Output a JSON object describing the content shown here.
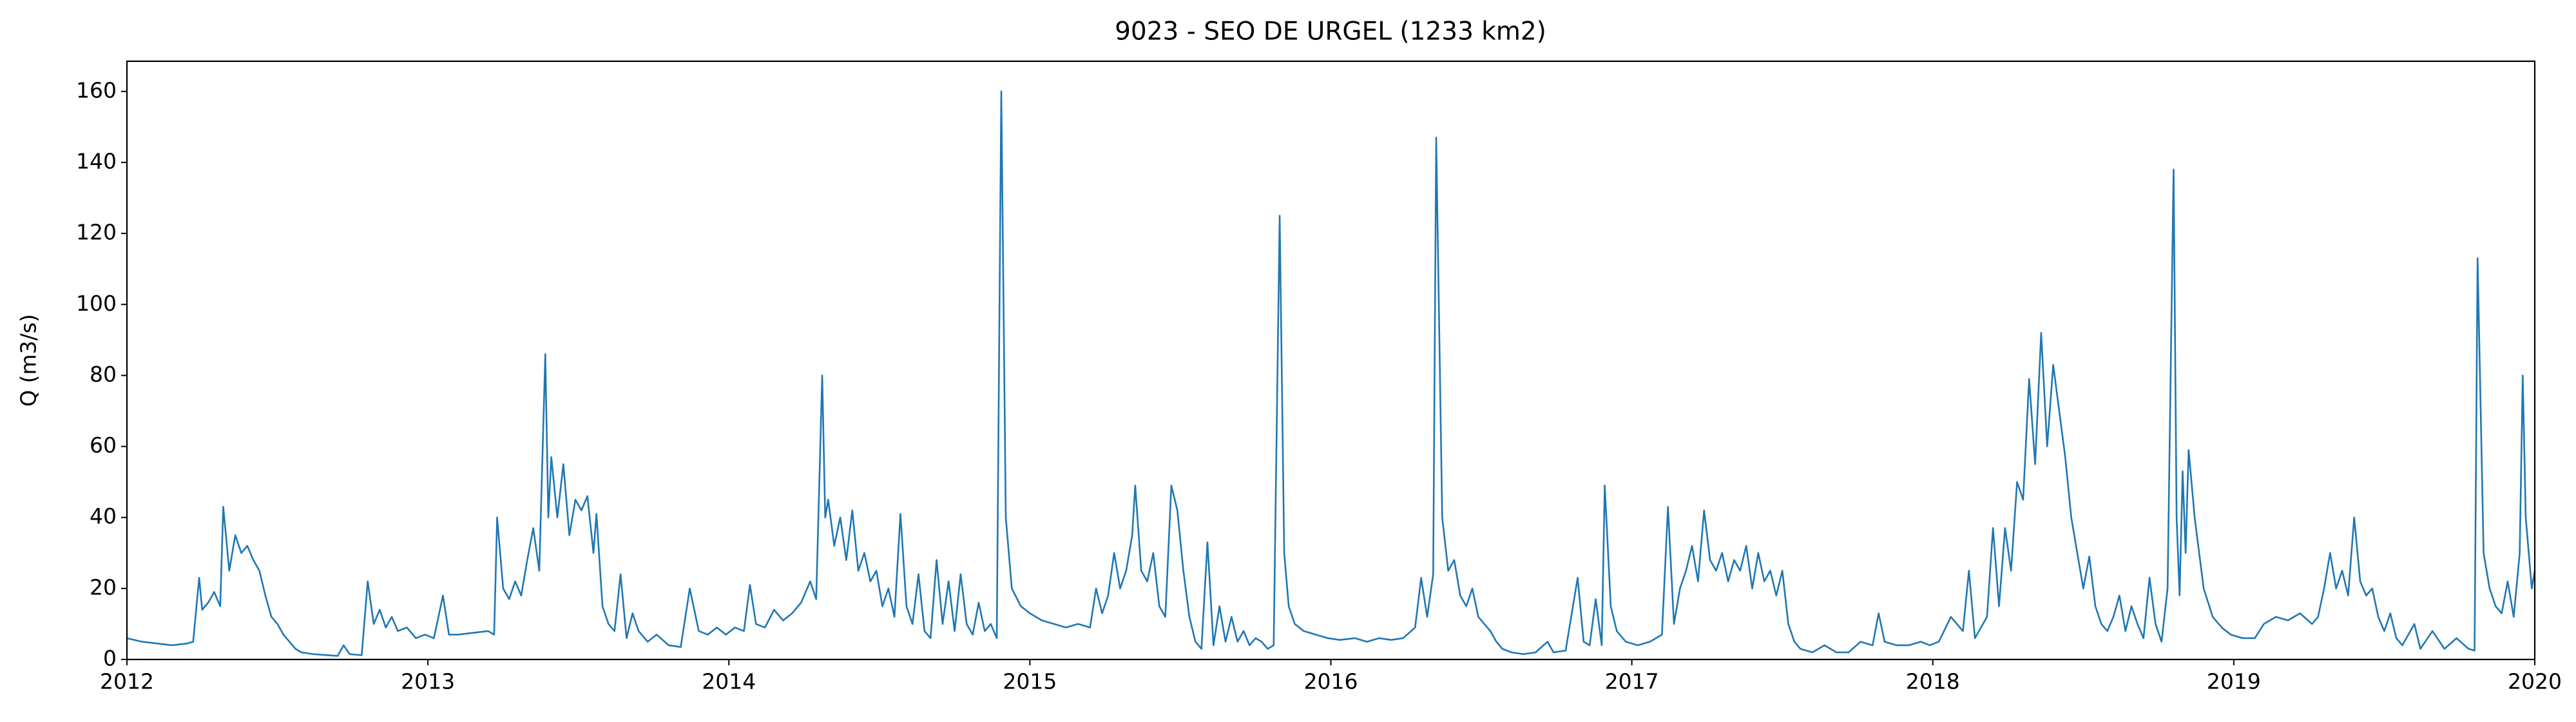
{
  "chart_data": {
    "type": "line",
    "title": "9023 - SEO DE URGEL (1233 km2)",
    "y_label": "Q (m3/s)",
    "color": "#1f77b4",
    "grid": false,
    "xlim": [
      2012,
      2020
    ],
    "xticks": [
      2012,
      2013,
      2014,
      2015,
      2016,
      2017,
      2018,
      2019,
      2020
    ],
    "ylim": [
      0,
      168.5
    ],
    "yticks": [
      0,
      20,
      40,
      60,
      80,
      100,
      120,
      140,
      160
    ],
    "x": [
      2012.0,
      2012.05,
      2012.1,
      2012.15,
      2012.2,
      2012.22,
      2012.24,
      2012.25,
      2012.27,
      2012.29,
      2012.31,
      2012.32,
      2012.34,
      2012.36,
      2012.38,
      2012.4,
      2012.42,
      2012.44,
      2012.46,
      2012.48,
      2012.5,
      2012.52,
      2012.54,
      2012.56,
      2012.58,
      2012.62,
      2012.7,
      2012.72,
      2012.74,
      2012.78,
      2012.8,
      2012.82,
      2012.84,
      2012.86,
      2012.88,
      2012.9,
      2012.93,
      2012.96,
      2012.99,
      2013.02,
      2013.05,
      2013.07,
      2013.1,
      2013.15,
      2013.2,
      2013.22,
      2013.23,
      2013.25,
      2013.27,
      2013.29,
      2013.31,
      2013.33,
      2013.35,
      2013.37,
      2013.39,
      2013.4,
      2013.41,
      2013.43,
      2013.45,
      2013.47,
      2013.49,
      2013.51,
      2013.53,
      2013.55,
      2013.56,
      2013.58,
      2013.6,
      2013.62,
      2013.64,
      2013.66,
      2013.68,
      2013.7,
      2013.73,
      2013.76,
      2013.8,
      2013.84,
      2013.87,
      2013.9,
      2013.93,
      2013.96,
      2013.99,
      2014.02,
      2014.05,
      2014.07,
      2014.09,
      2014.12,
      2014.15,
      2014.18,
      2014.21,
      2014.24,
      2014.27,
      2014.29,
      2014.31,
      2014.32,
      2014.33,
      2014.35,
      2014.37,
      2014.39,
      2014.41,
      2014.43,
      2014.45,
      2014.47,
      2014.49,
      2014.51,
      2014.53,
      2014.55,
      2014.57,
      2014.59,
      2014.61,
      2014.63,
      2014.65,
      2014.67,
      2014.69,
      2014.71,
      2014.73,
      2014.75,
      2014.77,
      2014.79,
      2014.81,
      2014.83,
      2014.85,
      2014.87,
      2014.89,
      2014.905,
      2014.92,
      2014.94,
      2014.97,
      2015.0,
      2015.04,
      2015.08,
      2015.12,
      2015.16,
      2015.2,
      2015.22,
      2015.24,
      2015.26,
      2015.28,
      2015.3,
      2015.32,
      2015.34,
      2015.35,
      2015.37,
      2015.39,
      2015.41,
      2015.43,
      2015.45,
      2015.47,
      2015.49,
      2015.51,
      2015.53,
      2015.55,
      2015.57,
      2015.59,
      2015.61,
      2015.63,
      2015.65,
      2015.67,
      2015.69,
      2015.71,
      2015.73,
      2015.75,
      2015.77,
      2015.79,
      2015.81,
      2015.83,
      2015.845,
      2015.86,
      2015.88,
      2015.91,
      2015.95,
      2015.99,
      2016.03,
      2016.08,
      2016.12,
      2016.16,
      2016.2,
      2016.24,
      2016.28,
      2016.3,
      2016.32,
      2016.34,
      2016.35,
      2016.37,
      2016.39,
      2016.41,
      2016.43,
      2016.45,
      2016.47,
      2016.49,
      2016.51,
      2016.53,
      2016.55,
      2016.57,
      2016.6,
      2016.64,
      2016.68,
      2016.72,
      2016.74,
      2016.78,
      2016.82,
      2016.84,
      2016.86,
      2016.88,
      2016.9,
      2016.91,
      2016.93,
      2016.95,
      2016.98,
      2017.02,
      2017.06,
      2017.1,
      2017.12,
      2017.14,
      2017.16,
      2017.18,
      2017.2,
      2017.22,
      2017.24,
      2017.26,
      2017.28,
      2017.3,
      2017.32,
      2017.34,
      2017.36,
      2017.38,
      2017.4,
      2017.42,
      2017.44,
      2017.46,
      2017.48,
      2017.5,
      2017.52,
      2017.54,
      2017.56,
      2017.6,
      2017.64,
      2017.68,
      2017.72,
      2017.76,
      2017.8,
      2017.82,
      2017.84,
      2017.88,
      2017.92,
      2017.96,
      2017.99,
      2018.02,
      2018.06,
      2018.1,
      2018.12,
      2018.14,
      2018.18,
      2018.2,
      2018.22,
      2018.24,
      2018.26,
      2018.28,
      2018.3,
      2018.32,
      2018.34,
      2018.36,
      2018.38,
      2018.4,
      2018.42,
      2018.44,
      2018.46,
      2018.48,
      2018.5,
      2018.52,
      2018.54,
      2018.56,
      2018.58,
      2018.6,
      2018.62,
      2018.64,
      2018.66,
      2018.68,
      2018.7,
      2018.72,
      2018.74,
      2018.76,
      2018.78,
      2018.8,
      2018.81,
      2018.82,
      2018.83,
      2018.84,
      2018.85,
      2018.87,
      2018.9,
      2018.93,
      2018.96,
      2018.99,
      2019.03,
      2019.07,
      2019.1,
      2019.14,
      2019.18,
      2019.22,
      2019.26,
      2019.28,
      2019.3,
      2019.32,
      2019.34,
      2019.36,
      2019.38,
      2019.4,
      2019.42,
      2019.44,
      2019.46,
      2019.48,
      2019.5,
      2019.52,
      2019.54,
      2019.56,
      2019.6,
      2019.62,
      2019.66,
      2019.7,
      2019.74,
      2019.78,
      2019.8,
      2019.81,
      2019.83,
      2019.85,
      2019.87,
      2019.89,
      2019.91,
      2019.93,
      2019.95,
      2019.96,
      2019.97,
      2019.99,
      2020.0
    ],
    "values": [
      6,
      5,
      4.5,
      4,
      4.5,
      5,
      23,
      14,
      16,
      19,
      15,
      43,
      25,
      35,
      30,
      32,
      28,
      25,
      18,
      12,
      10,
      7,
      5,
      3,
      2,
      1.5,
      1,
      4,
      1.5,
      1.2,
      22,
      10,
      14,
      9,
      12,
      8,
      9,
      6,
      7,
      6,
      18,
      7,
      7,
      7.5,
      8,
      7,
      40,
      20,
      17,
      22,
      18,
      28,
      37,
      25,
      86,
      40,
      57,
      40,
      55,
      35,
      45,
      42,
      46,
      30,
      41,
      15,
      10,
      8,
      24,
      6,
      13,
      8,
      5,
      7,
      4,
      3.5,
      20,
      8,
      7,
      9,
      7,
      9,
      8,
      21,
      10,
      9,
      14,
      11,
      13,
      16,
      22,
      17,
      80,
      40,
      45,
      32,
      40,
      28,
      42,
      25,
      30,
      22,
      25,
      15,
      20,
      12,
      41,
      15,
      10,
      24,
      8,
      6,
      28,
      10,
      22,
      8,
      24,
      10,
      7,
      16,
      8,
      10,
      6,
      160,
      40,
      20,
      15,
      13,
      11,
      10,
      9,
      10,
      9,
      20,
      13,
      18,
      30,
      20,
      25,
      35,
      49,
      25,
      22,
      30,
      15,
      12,
      49,
      42,
      25,
      12,
      5,
      3,
      33,
      4,
      15,
      5,
      12,
      5,
      8,
      4,
      6,
      5,
      3,
      4,
      125,
      30,
      15,
      10,
      8,
      7,
      6,
      5.5,
      6,
      5,
      6,
      5.5,
      6,
      9,
      23,
      12,
      24,
      147,
      40,
      25,
      28,
      18,
      15,
      20,
      12,
      10,
      8,
      5,
      3,
      2,
      1.5,
      2,
      5,
      2,
      2.5,
      23,
      5,
      4,
      17,
      4,
      49,
      15,
      8,
      5,
      4,
      5,
      7,
      43,
      10,
      20,
      25,
      32,
      22,
      42,
      28,
      25,
      30,
      22,
      28,
      25,
      32,
      20,
      30,
      22,
      25,
      18,
      25,
      10,
      5,
      3,
      2,
      4,
      2,
      2,
      5,
      4,
      13,
      5,
      4,
      4,
      5,
      4,
      5,
      12,
      8,
      25,
      6,
      12,
      37,
      15,
      37,
      25,
      50,
      45,
      79,
      55,
      92,
      60,
      83,
      70,
      57,
      40,
      30,
      20,
      29,
      15,
      10,
      8,
      12,
      18,
      8,
      15,
      10,
      6,
      23,
      10,
      5,
      20,
      138,
      40,
      18,
      53,
      30,
      59,
      40,
      20,
      12,
      9,
      7,
      6,
      6,
      10,
      12,
      11,
      13,
      10,
      12,
      20,
      30,
      20,
      25,
      18,
      40,
      22,
      18,
      20,
      12,
      8,
      13,
      6,
      4,
      10,
      3,
      8,
      3,
      6,
      3,
      2.5,
      113,
      30,
      20,
      15,
      13,
      22,
      12,
      30,
      80,
      40,
      20,
      25
    ]
  }
}
